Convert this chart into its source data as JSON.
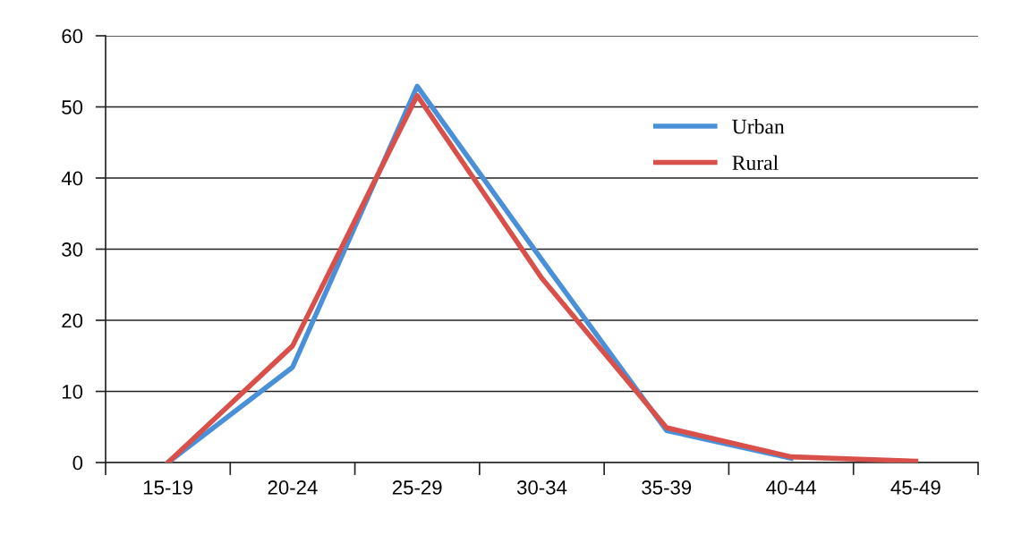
{
  "chart_data": {
    "type": "line",
    "categories": [
      "15-19",
      "20-24",
      "25-29",
      "30-34",
      "35-39",
      "40-44",
      "45-49"
    ],
    "series": [
      {
        "name": "Urban",
        "color": "#4a90d9",
        "values": [
          0,
          13.4,
          52.9,
          28.5,
          4.5,
          0.6,
          null
        ]
      },
      {
        "name": "Rural",
        "color": "#d9504a",
        "values": [
          0,
          16.4,
          51.6,
          25.9,
          4.9,
          0.8,
          0.2
        ]
      }
    ],
    "ylim": [
      0,
      60
    ],
    "yticks": [
      0,
      10,
      20,
      30,
      40,
      50,
      60
    ],
    "grid": "y",
    "legend": "top right",
    "marker": "none",
    "line_style": "solid"
  }
}
